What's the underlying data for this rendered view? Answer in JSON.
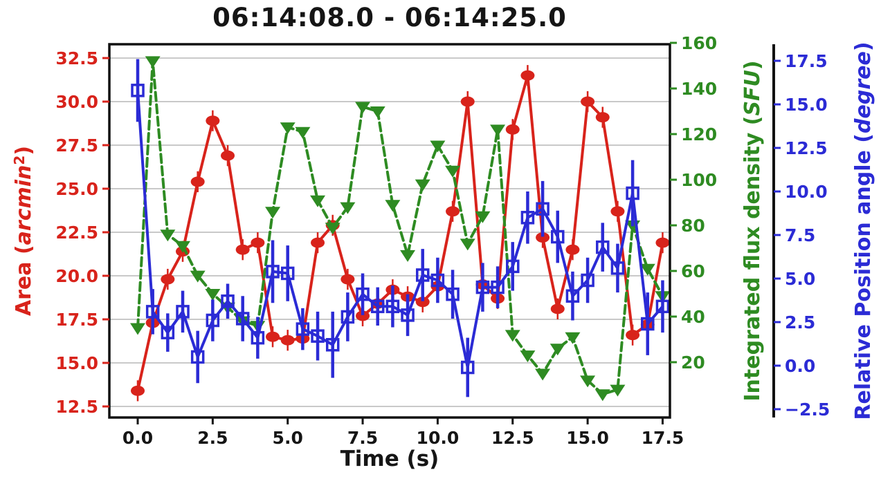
{
  "chart_data": {
    "type": "line",
    "title": "06:14:08.0 - 06:14:25.0",
    "xlabel": "Time (s)",
    "x": [
      0,
      0.5,
      1,
      1.5,
      2,
      2.5,
      3,
      3.5,
      4,
      4.5,
      5,
      5.5,
      6,
      6.5,
      7,
      7.5,
      8,
      8.5,
      9,
      9.5,
      10,
      10.5,
      11,
      11.5,
      12,
      12.5,
      13,
      13.5,
      14,
      14.5,
      15,
      15.5,
      16,
      16.5,
      17,
      17.5
    ],
    "x_ticks": [
      "0.0",
      "2.5",
      "5.0",
      "7.5",
      "10.0",
      "12.5",
      "15.0",
      "17.5"
    ],
    "x_tick_values": [
      0,
      2.5,
      5,
      7.5,
      10,
      12.5,
      15,
      17.5
    ],
    "grid": true,
    "legend": "none",
    "axes": {
      "left": {
        "label_parts": {
          "prefix": "Area (",
          "italic": "arcmin",
          "sup": "2",
          "suffix": ")"
        },
        "color": "#d8231b",
        "ticks": [
          "32.5",
          "30.0",
          "27.5",
          "25.0",
          "22.5",
          "20.0",
          "17.5",
          "15.0",
          "12.5"
        ],
        "tick_values": [
          32.5,
          30,
          27.5,
          25,
          22.5,
          20,
          17.5,
          15,
          12.5
        ]
      },
      "right_inner": {
        "label_parts": {
          "prefix": "Integrated flux density (",
          "italic": "SFU",
          "sup": "",
          "suffix": ")"
        },
        "color": "#2e8b22",
        "ticks": [
          "160",
          "140",
          "120",
          "100",
          "80",
          "60",
          "40",
          "20"
        ],
        "tick_values": [
          160,
          140,
          120,
          100,
          80,
          60,
          40,
          20
        ]
      },
      "right_outer": {
        "label_parts": {
          "prefix": "Relative Position angle (",
          "italic": "degree",
          "sup": "",
          "suffix": ")"
        },
        "color": "#2b2bd5",
        "ticks": [
          "17.5",
          "15.0",
          "12.5",
          "10.0",
          "7.5",
          "5.0",
          "2.5",
          "0.0",
          "−2.5"
        ],
        "tick_values": [
          17.5,
          15,
          12.5,
          10,
          7.5,
          5,
          2.5,
          0,
          -2.5
        ]
      }
    },
    "series": [
      {
        "name": "area",
        "axis": "left",
        "color": "#d8231b",
        "marker": "ellipse",
        "line": "solid",
        "err": 0.6,
        "values": [
          13.4,
          17.3,
          19.8,
          21.4,
          25.4,
          28.9,
          26.9,
          21.5,
          21.9,
          16.5,
          16.3,
          16.4,
          21.9,
          22.9,
          19.8,
          17.7,
          18.4,
          19.2,
          18.8,
          18.5,
          19.4,
          23.7,
          30.0,
          19.5,
          18.7,
          28.4,
          31.5,
          22.2,
          18.1,
          21.5,
          30.0,
          29.1,
          23.7,
          16.6,
          17.2,
          21.9
        ]
      },
      {
        "name": "integrated-flux-density",
        "axis": "right_inner",
        "color": "#2e8b22",
        "marker": "triangle-down",
        "line": "dashed",
        "err": 0,
        "values": [
          35,
          152,
          76,
          71,
          58,
          50,
          44,
          38,
          36,
          86,
          123,
          121,
          91,
          79,
          88,
          132,
          130,
          89,
          67,
          98,
          115,
          104,
          72,
          84,
          122,
          32,
          23,
          15,
          26,
          31,
          12,
          6,
          8,
          80,
          61,
          49
        ]
      },
      {
        "name": "relative-position-angle",
        "axis": "right_outer",
        "color": "#2b2bd5",
        "marker": "open-square",
        "line": "solid",
        "err": [
          1.8,
          1.3,
          1.1,
          1.2,
          1.5,
          1.2,
          1.0,
          1.3,
          1.2,
          1.8,
          1.6,
          1.2,
          1.4,
          1.9,
          1.4,
          1.2,
          1.1,
          1.2,
          1.2,
          1.5,
          1.3,
          1.4,
          1.7,
          1.4,
          1.2,
          1.4,
          1.5,
          1.6,
          1.5,
          1.4,
          1.3,
          1.4,
          1.4,
          1.9,
          1.8,
          1.5
        ],
        "values": [
          15.8,
          3.1,
          1.9,
          3.1,
          0.5,
          2.6,
          3.7,
          2.7,
          1.6,
          5.4,
          5.3,
          2.1,
          1.7,
          1.2,
          2.8,
          4.1,
          3.4,
          3.4,
          2.9,
          5.2,
          4.9,
          4.1,
          -0.1,
          4.5,
          4.5,
          5.7,
          8.5,
          9.0,
          7.4,
          4.0,
          4.9,
          6.8,
          5.6,
          9.9,
          2.4,
          3.4
        ]
      }
    ]
  }
}
